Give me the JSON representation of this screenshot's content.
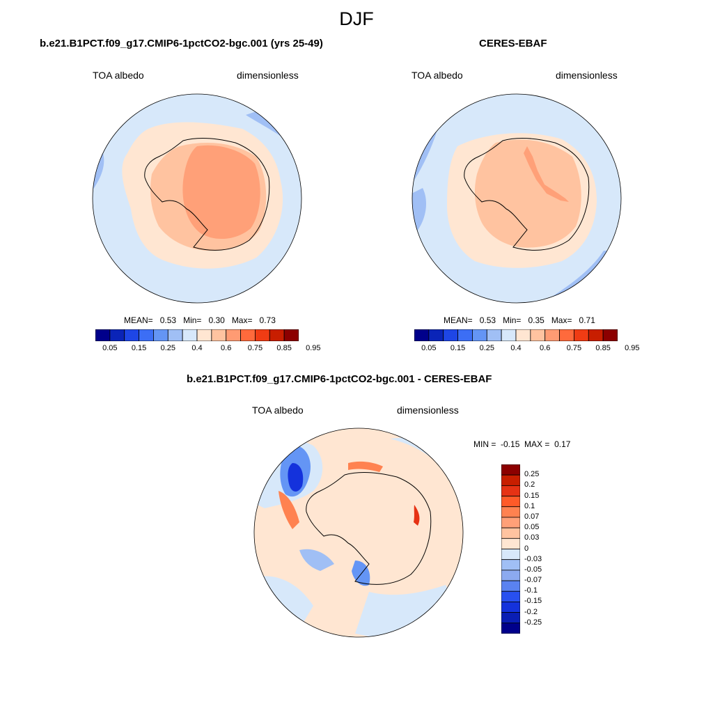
{
  "figure": {
    "title": "DJF"
  },
  "panels": [
    {
      "title": "b.e21.B1PCT.f09_g17.CMIP6-1pctCO2-bgc.001 (yrs 25-49)",
      "left_label": "TOA albedo",
      "right_label": "dimensionless",
      "stats": {
        "mean_label": "MEAN=",
        "mean": "0.53",
        "min_label": "Min=",
        "min": "0.30",
        "max_label": "Max=",
        "max": "0.73"
      }
    },
    {
      "title": "CERES-EBAF",
      "left_label": "TOA albedo",
      "right_label": "dimensionless",
      "stats": {
        "mean_label": "MEAN=",
        "mean": "0.53",
        "min_label": "Min=",
        "min": "0.35",
        "max_label": "Max=",
        "max": "0.71"
      }
    },
    {
      "title": "b.e21.B1PCT.f09_g17.CMIP6-1pctCO2-bgc.001 - CERES-EBAF",
      "left_label": "TOA albedo",
      "right_label": "dimensionless",
      "minmax": {
        "min_label": "MIN =",
        "min": "-0.15",
        "max_label": "MAX =",
        "max": "0.17"
      }
    }
  ],
  "colorbars": {
    "albedo": {
      "colors": [
        "#00008b",
        "#0a24b8",
        "#1e46e6",
        "#3c6ef5",
        "#6495f5",
        "#a0bff5",
        "#d7e8fa",
        "#ffe6d2",
        "#ffc3a0",
        "#ff9b73",
        "#ff6a3c",
        "#f03c14",
        "#c81e00",
        "#8c0000"
      ],
      "tick_labels": [
        "0.05",
        "0.15",
        "0.25",
        "0.4",
        "0.6",
        "0.75",
        "0.85",
        "0.95"
      ]
    },
    "diff": {
      "colors_top_to_bottom": [
        "#8c0000",
        "#c81e00",
        "#e63214",
        "#ff5a28",
        "#ff8250",
        "#ffa078",
        "#ffc3a0",
        "#ffe6d2",
        "#d7e8fa",
        "#a0bff5",
        "#8caaf0",
        "#5a82f0",
        "#2850f0",
        "#1432dc",
        "#0a1eb4",
        "#00008b"
      ],
      "tick_labels": [
        "0.25",
        "0.2",
        "0.15",
        "0.1",
        "0.07",
        "0.05",
        "0.03",
        "0",
        "-0.03",
        "-0.05",
        "-0.07",
        "-0.1",
        "-0.15",
        "-0.2",
        "-0.25"
      ]
    }
  },
  "map_colors": {
    "ocean_low": "#d7e8fa",
    "ocean_lower": "#a0bff5",
    "light_orange": "#ffe6d2",
    "mid_orange": "#ffc3a0",
    "strong_orange": "#ffa078",
    "diff_ocean": "#ffe6d2",
    "diff_blue": "#2850f0",
    "diff_red": "#e63214"
  }
}
